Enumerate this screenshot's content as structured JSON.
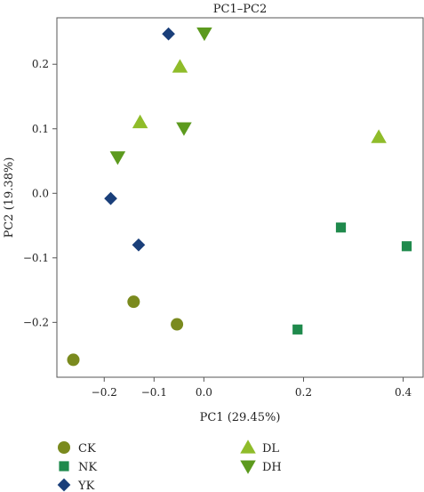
{
  "chart_data": {
    "type": "scatter",
    "title": "PC1–PC2",
    "xlabel": "PC1 (29.45%)",
    "ylabel": "PC2 (19.38%)",
    "xlim": [
      -0.295,
      0.44
    ],
    "ylim": [
      -0.285,
      0.272
    ],
    "x_ticks": [
      -0.2,
      -0.1,
      0.0,
      0.2,
      0.4
    ],
    "x_tick_labels": [
      "−0.2",
      "−0.1",
      "0.0",
      "0.2",
      "0.4"
    ],
    "y_ticks": [
      0.2,
      0.1,
      0.0,
      -0.1,
      -0.2
    ],
    "y_tick_labels": [
      "0.2",
      "0.1",
      "0.0",
      "−0.1",
      "−0.2"
    ],
    "grid": false,
    "legend_position": "bottom",
    "series": [
      {
        "name": "CK",
        "marker": "circle",
        "color": "#7a8a1e",
        "points": [
          [
            -0.262,
            -0.258
          ],
          [
            -0.141,
            -0.168
          ],
          [
            -0.054,
            -0.203
          ]
        ]
      },
      {
        "name": "NK",
        "marker": "square",
        "color": "#1f8a4c",
        "points": [
          [
            0.275,
            -0.053
          ],
          [
            0.407,
            -0.082
          ],
          [
            0.188,
            -0.211
          ]
        ]
      },
      {
        "name": "YK",
        "marker": "diamond",
        "color": "#1a3f7a",
        "points": [
          [
            -0.071,
            0.247
          ],
          [
            -0.187,
            -0.008
          ],
          [
            -0.131,
            -0.08
          ]
        ]
      },
      {
        "name": "DL",
        "marker": "triangle-up",
        "color": "#8fbc2a",
        "points": [
          [
            -0.048,
            0.196
          ],
          [
            -0.128,
            0.11
          ],
          [
            0.351,
            0.087
          ]
        ]
      },
      {
        "name": "DH",
        "marker": "triangle-down",
        "color": "#5c9a1e",
        "points": [
          [
            0.001,
            0.248
          ],
          [
            -0.04,
            0.101
          ],
          [
            -0.173,
            0.056
          ]
        ]
      }
    ]
  }
}
